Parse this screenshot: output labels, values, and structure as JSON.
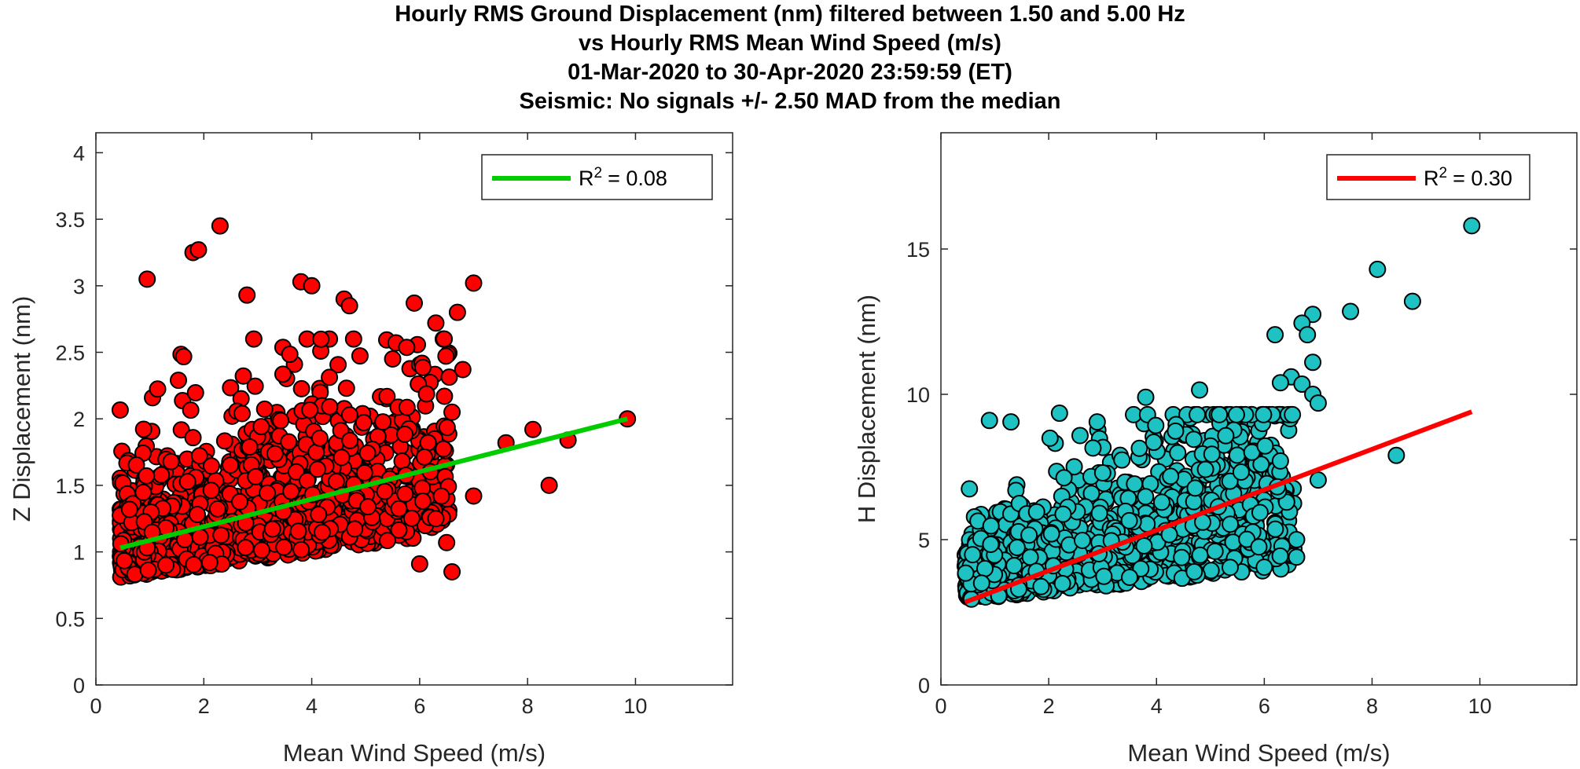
{
  "figure": {
    "title_lines": [
      "Hourly RMS Ground Displacement (nm) filtered between 1.50 and 5.00 Hz",
      "vs Hourly RMS Mean Wind Speed (m/s)",
      "01-Mar-2020 to 30-Apr-2020 23:59:59 (ET)",
      "Seismic: No signals +/- 2.50 MAD from the median"
    ]
  },
  "chart_data": [
    {
      "type": "scatter",
      "xlabel": "Mean Wind Speed (m/s)",
      "ylabel": "Z Displacement (nm)",
      "xlim": [
        0,
        11.8
      ],
      "ylim": [
        0,
        4.15
      ],
      "xticks": [
        0,
        2,
        4,
        6,
        8,
        10
      ],
      "yticks": [
        0,
        0.5,
        1,
        1.5,
        2,
        2.5,
        3,
        3.5,
        4
      ],
      "xtick_labels": [
        "0",
        "2",
        "4",
        "6",
        "8",
        "10"
      ],
      "ytick_labels": [
        "0",
        "0.5",
        "1",
        "1.5",
        "2",
        "2.5",
        "3",
        "3.5",
        "4"
      ],
      "marker_color": "#ff0000",
      "fit_color": "#00cc00",
      "fit_line": {
        "x": [
          0.45,
          9.85
        ],
        "y": [
          1.03,
          2.0
        ]
      },
      "legend": {
        "r2_value": "= 0.08",
        "position": "top-right"
      },
      "grid": false,
      "notable_points": [
        {
          "x": 0.95,
          "y": 3.05
        },
        {
          "x": 1.8,
          "y": 3.25
        },
        {
          "x": 1.9,
          "y": 3.27
        },
        {
          "x": 2.3,
          "y": 3.45
        },
        {
          "x": 2.8,
          "y": 2.93
        },
        {
          "x": 3.8,
          "y": 3.03
        },
        {
          "x": 4.0,
          "y": 3.0
        },
        {
          "x": 4.6,
          "y": 2.9
        },
        {
          "x": 4.7,
          "y": 2.85
        },
        {
          "x": 5.5,
          "y": 2.45
        },
        {
          "x": 5.9,
          "y": 2.87
        },
        {
          "x": 6.3,
          "y": 2.72
        },
        {
          "x": 6.7,
          "y": 2.8
        },
        {
          "x": 6.8,
          "y": 2.37
        },
        {
          "x": 7.0,
          "y": 3.02
        },
        {
          "x": 6.6,
          "y": 2.05
        },
        {
          "x": 7.0,
          "y": 1.42
        },
        {
          "x": 7.6,
          "y": 1.82
        },
        {
          "x": 8.1,
          "y": 1.92
        },
        {
          "x": 8.4,
          "y": 1.5
        },
        {
          "x": 8.75,
          "y": 1.84
        },
        {
          "x": 9.85,
          "y": 2.0
        },
        {
          "x": 6.6,
          "y": 0.85
        },
        {
          "x": 6.5,
          "y": 1.07
        },
        {
          "x": 6.0,
          "y": 0.91
        },
        {
          "x": 6.3,
          "y": 1.25
        }
      ]
    },
    {
      "type": "scatter",
      "xlabel": "Mean Wind Speed (m/s)",
      "ylabel": "H Displacement (nm)",
      "xlim": [
        0,
        11.8
      ],
      "ylim": [
        0,
        19.0
      ],
      "xticks": [
        0,
        2,
        4,
        6,
        8,
        10
      ],
      "yticks": [
        0,
        5,
        10,
        15
      ],
      "xtick_labels": [
        "0",
        "2",
        "4",
        "6",
        "8",
        "10"
      ],
      "ytick_labels": [
        "0",
        "5",
        "10",
        "15"
      ],
      "marker_color": "#1ec2c2",
      "fit_color": "#ff0000",
      "fit_line": {
        "x": [
          0.45,
          9.85
        ],
        "y": [
          2.85,
          9.4
        ]
      },
      "legend": {
        "r2_value": "= 0.30",
        "position": "top-right"
      },
      "grid": false,
      "notable_points": [
        {
          "x": 9.85,
          "y": 15.8
        },
        {
          "x": 8.1,
          "y": 14.3
        },
        {
          "x": 8.75,
          "y": 13.2
        },
        {
          "x": 7.6,
          "y": 12.85
        },
        {
          "x": 6.9,
          "y": 12.75
        },
        {
          "x": 6.7,
          "y": 12.45
        },
        {
          "x": 6.8,
          "y": 12.05
        },
        {
          "x": 6.2,
          "y": 12.05
        },
        {
          "x": 6.9,
          "y": 11.1
        },
        {
          "x": 6.5,
          "y": 10.6
        },
        {
          "x": 6.3,
          "y": 10.4
        },
        {
          "x": 6.7,
          "y": 10.35
        },
        {
          "x": 6.9,
          "y": 10.0
        },
        {
          "x": 7.0,
          "y": 9.7
        },
        {
          "x": 4.8,
          "y": 10.15
        },
        {
          "x": 3.8,
          "y": 9.9
        },
        {
          "x": 8.45,
          "y": 7.9
        },
        {
          "x": 7.0,
          "y": 7.05
        },
        {
          "x": 0.9,
          "y": 9.1
        },
        {
          "x": 1.3,
          "y": 9.05
        },
        {
          "x": 2.2,
          "y": 9.35
        },
        {
          "x": 2.9,
          "y": 9.05
        },
        {
          "x": 6.6,
          "y": 4.4
        },
        {
          "x": 6.6,
          "y": 5.0
        },
        {
          "x": 6.0,
          "y": 4.05
        },
        {
          "x": 5.9,
          "y": 4.75
        }
      ]
    }
  ]
}
